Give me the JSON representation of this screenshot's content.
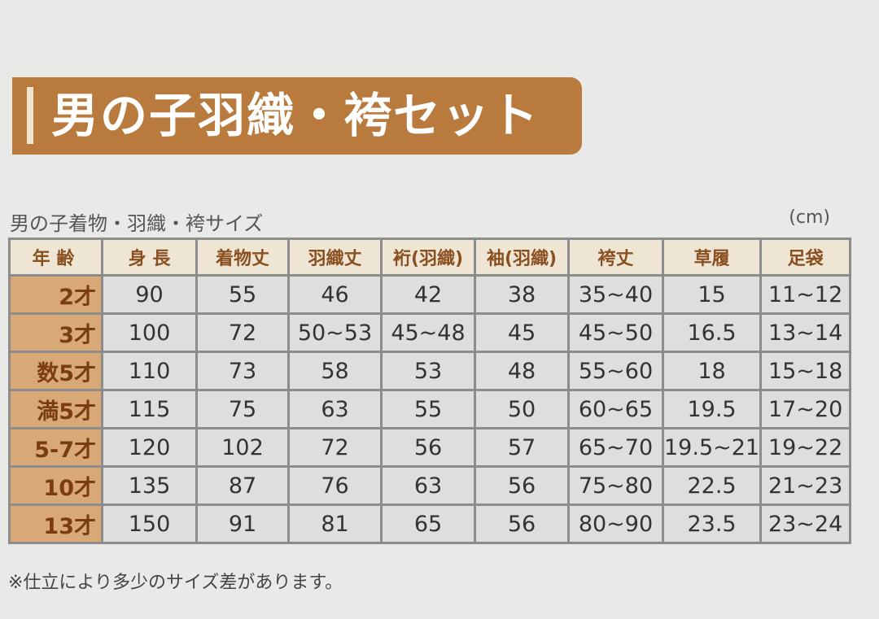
{
  "header": {
    "title": "男の子羽織・袴セット"
  },
  "table": {
    "caption": "男の子着物・羽織・袴サイズ",
    "unit": "(cm)",
    "columns": [
      "年 齢",
      "身 長",
      "着物丈",
      "羽織丈",
      "裄(羽織)",
      "袖(羽織)",
      "袴丈",
      "草履",
      "足袋"
    ],
    "rows": [
      [
        "2才",
        "90",
        "55",
        "46",
        "42",
        "38",
        "35~40",
        "15",
        "11~12"
      ],
      [
        "3才",
        "100",
        "72",
        "50~53",
        "45~48",
        "45",
        "45~50",
        "16.5",
        "13~14"
      ],
      [
        "数5才",
        "110",
        "73",
        "58",
        "53",
        "48",
        "55~60",
        "18",
        "15~18"
      ],
      [
        "満5才",
        "115",
        "75",
        "63",
        "55",
        "50",
        "60~65",
        "19.5",
        "17~20"
      ],
      [
        "5-7才",
        "120",
        "102",
        "72",
        "56",
        "57",
        "65~70",
        "19.5~21",
        "19~22"
      ],
      [
        "10才",
        "135",
        "87",
        "76",
        "63",
        "56",
        "75~80",
        "22.5",
        "21~23"
      ],
      [
        "13才",
        "150",
        "91",
        "81",
        "65",
        "56",
        "80~90",
        "23.5",
        "23~24"
      ]
    ]
  },
  "footnote": "※仕立により多少のサイズ差があります。"
}
